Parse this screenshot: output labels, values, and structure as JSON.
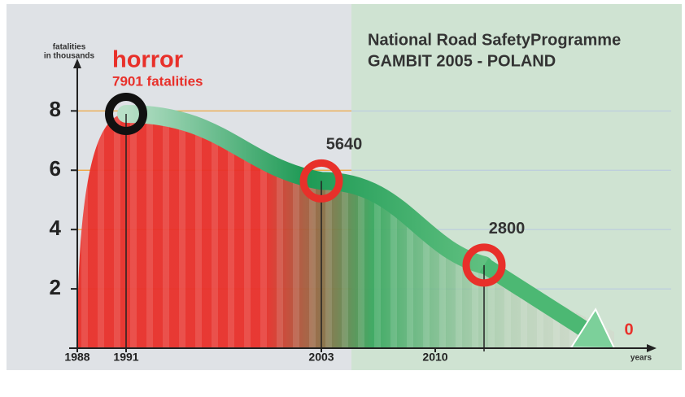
{
  "chart_data": {
    "type": "line",
    "title": [
      "National Road SafetyProgramme",
      "GAMBIT 2005 - POLAND"
    ],
    "y_label": [
      "fatalities",
      "in thousands"
    ],
    "x_label": "years",
    "annotation": "horror",
    "x": [
      1991,
      2003,
      2013
    ],
    "series": [
      {
        "name": "fatalities",
        "color": "#e8302a",
        "values": [
          7.901,
          5.64,
          2.8
        ],
        "value_labels": [
          "7901 fatalities",
          "5640",
          "2800"
        ]
      }
    ],
    "highlight_color": "#111111",
    "target": {
      "x": 2021,
      "value": 0,
      "label": "0"
    },
    "xlim": [
      1988,
      2023
    ],
    "xticks": [
      1988,
      1991,
      2003,
      2010
    ],
    "ylim": [
      0,
      9.6
    ],
    "yticks": [
      2,
      4,
      6,
      8
    ],
    "grid": true
  }
}
